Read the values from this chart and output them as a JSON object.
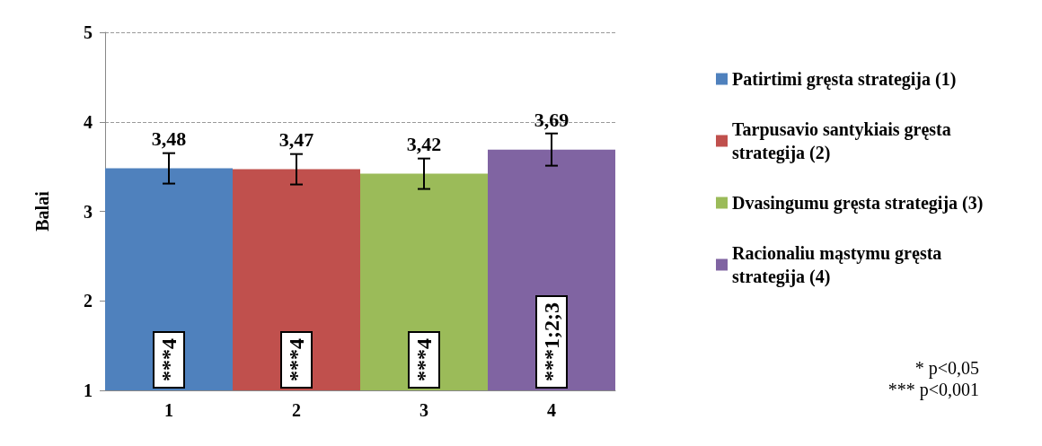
{
  "chart_data": {
    "type": "bar",
    "ylabel": "Balai",
    "categories": [
      "1",
      "2",
      "3",
      "4"
    ],
    "series": [
      {
        "name": "Patirtimi gręsta strategija (1)",
        "color": "#4f81bd",
        "values": [
          3.48,
          null,
          null,
          null
        ],
        "value_labels": [
          "3,48",
          null,
          null,
          null
        ],
        "errors": [
          0.17,
          null,
          null,
          null
        ]
      },
      {
        "name": "Tarpusavio santykiais gręsta strategija (2)",
        "color": "#c0504d",
        "values": [
          null,
          3.47,
          null,
          null
        ],
        "value_labels": [
          null,
          "3,47",
          null,
          null
        ],
        "errors": [
          null,
          0.17,
          null,
          null
        ]
      },
      {
        "name": "Dvasingumu gręsta strategija (3)",
        "color": "#9bbb59",
        "values": [
          null,
          null,
          3.42,
          null
        ],
        "value_labels": [
          null,
          null,
          "3,42",
          null
        ],
        "errors": [
          null,
          null,
          0.17,
          null
        ]
      },
      {
        "name": "Racionaliu mąstymu gręsta strategija (4)",
        "color": "#8064a2",
        "values": [
          null,
          null,
          null,
          3.69
        ],
        "value_labels": [
          null,
          null,
          null,
          "3,69"
        ],
        "errors": [
          null,
          null,
          null,
          0.18
        ]
      }
    ],
    "ylim": [
      1,
      5
    ],
    "yticks": [
      1,
      2,
      3,
      4,
      5
    ],
    "grid": "y",
    "legend": "right",
    "annotations": [
      "***4",
      "***4",
      "***4",
      "***1;2;3",
      "* p<0,05",
      "*** p<0,001"
    ]
  }
}
